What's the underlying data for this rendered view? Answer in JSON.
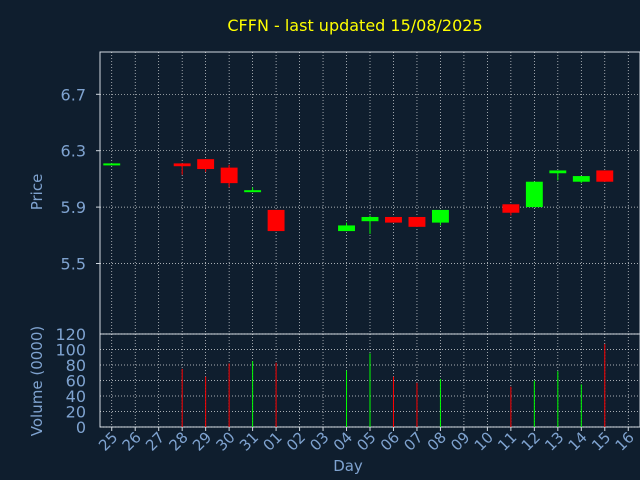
{
  "colors": {
    "background": "#0f1e2e",
    "title": "#ffff00",
    "axis_text": "#7fa3d0",
    "frame": "#d0d8e0",
    "grid": "#ffffff",
    "up": "#00ff00",
    "down": "#ff0000"
  },
  "chart_data": {
    "type": "candlestick",
    "title": "CFFN - last updated 15/08/2025",
    "xlabel": "Day",
    "grid": true,
    "categories": [
      "25",
      "26",
      "27",
      "28",
      "29",
      "30",
      "31",
      "01",
      "02",
      "03",
      "04",
      "05",
      "06",
      "07",
      "08",
      "09",
      "10",
      "11",
      "12",
      "13",
      "14",
      "15",
      "16"
    ],
    "price": {
      "ylabel": "Price",
      "ylim": [
        5.0,
        7.0
      ],
      "yticks": [
        5.5,
        5.9,
        6.3,
        6.7
      ],
      "candles": [
        {
          "x": "25",
          "open": 6.2,
          "close": 6.21,
          "high": 6.21,
          "low": 6.2
        },
        {
          "x": "28",
          "open": 6.21,
          "close": 6.19,
          "high": 6.21,
          "low": 6.13
        },
        {
          "x": "29",
          "open": 6.24,
          "close": 6.17,
          "high": 6.24,
          "low": 6.15
        },
        {
          "x": "30",
          "open": 6.18,
          "close": 6.07,
          "high": 6.2,
          "low": 6.04
        },
        {
          "x": "31",
          "open": 6.01,
          "close": 6.02,
          "high": 6.04,
          "low": 6.01
        },
        {
          "x": "01",
          "open": 5.88,
          "close": 5.73,
          "high": 5.88,
          "low": 5.73
        },
        {
          "x": "04",
          "open": 5.73,
          "close": 5.77,
          "high": 5.79,
          "low": 5.73
        },
        {
          "x": "05",
          "open": 5.8,
          "close": 5.83,
          "high": 5.84,
          "low": 5.71
        },
        {
          "x": "06",
          "open": 5.83,
          "close": 5.79,
          "high": 5.83,
          "low": 5.79
        },
        {
          "x": "07",
          "open": 5.83,
          "close": 5.76,
          "high": 5.83,
          "low": 5.76
        },
        {
          "x": "08",
          "open": 5.79,
          "close": 5.88,
          "high": 5.88,
          "low": 5.77
        },
        {
          "x": "11",
          "open": 5.92,
          "close": 5.86,
          "high": 5.92,
          "low": 5.84
        },
        {
          "x": "12",
          "open": 5.9,
          "close": 6.08,
          "high": 6.08,
          "low": 5.9
        },
        {
          "x": "13",
          "open": 6.14,
          "close": 6.16,
          "high": 6.16,
          "low": 6.09
        },
        {
          "x": "14",
          "open": 6.08,
          "close": 6.12,
          "high": 6.12,
          "low": 6.07
        },
        {
          "x": "15",
          "open": 6.16,
          "close": 6.08,
          "high": 6.16,
          "low": 6.08
        }
      ]
    },
    "volume": {
      "ylabel": "Volume (0000)",
      "ylim": [
        0,
        120
      ],
      "yticks": [
        0,
        20,
        40,
        60,
        80,
        100,
        120
      ],
      "bars": [
        {
          "x": "25",
          "value": 0,
          "dir": "up"
        },
        {
          "x": "28",
          "value": 75,
          "dir": "down"
        },
        {
          "x": "29",
          "value": 65,
          "dir": "down"
        },
        {
          "x": "30",
          "value": 82,
          "dir": "down"
        },
        {
          "x": "31",
          "value": 85,
          "dir": "up"
        },
        {
          "x": "01",
          "value": 83,
          "dir": "down"
        },
        {
          "x": "04",
          "value": 73,
          "dir": "up"
        },
        {
          "x": "05",
          "value": 95,
          "dir": "up"
        },
        {
          "x": "06",
          "value": 65,
          "dir": "down"
        },
        {
          "x": "07",
          "value": 57,
          "dir": "down"
        },
        {
          "x": "08",
          "value": 62,
          "dir": "up"
        },
        {
          "x": "11",
          "value": 52,
          "dir": "down"
        },
        {
          "x": "12",
          "value": 60,
          "dir": "up"
        },
        {
          "x": "13",
          "value": 72,
          "dir": "up"
        },
        {
          "x": "14",
          "value": 55,
          "dir": "up"
        },
        {
          "x": "15",
          "value": 107,
          "dir": "down"
        }
      ]
    }
  }
}
